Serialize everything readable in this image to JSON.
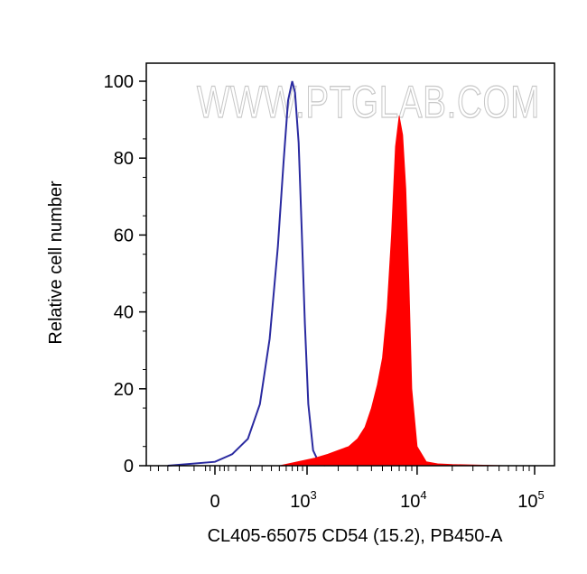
{
  "watermark": "WWW.PTGLAB.COM",
  "chart_data": {
    "type": "area",
    "xlabel": "CL405-65075 CD54 (15.2), PB450-A",
    "ylabel": "Relative cell number",
    "xscale": "biexponential",
    "ylim": [
      0,
      100
    ],
    "grid": false,
    "y_ticks": [
      "0",
      "20",
      "40",
      "60",
      "80",
      "100"
    ],
    "x_ticks": [
      {
        "value": 0,
        "base": "0",
        "exp": ""
      },
      {
        "value": 1000,
        "base": "10",
        "exp": "3"
      },
      {
        "value": 10000,
        "base": "10",
        "exp": "4"
      },
      {
        "value": 100000,
        "base": "10",
        "exp": "5"
      }
    ],
    "series": [
      {
        "style": "outline",
        "color": "#2a2aa0",
        "x": [
          -300,
          0,
          80,
          180,
          280,
          380,
          480,
          560,
          630,
          700,
          750,
          820,
          880,
          950,
          1030,
          1150,
          1300,
          1500
        ],
        "y": [
          0,
          1,
          3,
          7,
          16,
          33,
          57,
          79,
          95,
          100,
          97,
          84,
          62,
          37,
          16,
          4,
          1,
          0
        ]
      },
      {
        "style": "filled",
        "color": "#ff0000",
        "x": [
          500,
          800,
          1200,
          1600,
          2000,
          2500,
          3000,
          3500,
          4000,
          4500,
          5000,
          5500,
          6000,
          6500,
          7000,
          7500,
          8000,
          8500,
          9000,
          10000,
          12000,
          15000,
          20000,
          30000,
          60000,
          100000,
          150000,
          190000,
          230000
        ],
        "y": [
          0,
          1,
          2,
          3,
          4,
          5,
          7,
          10,
          15,
          21,
          28,
          41,
          60,
          83,
          91,
          86,
          72,
          48,
          20,
          5,
          1,
          0.5,
          0.3,
          0.2,
          0,
          0,
          0,
          0.5,
          2
        ]
      }
    ]
  }
}
